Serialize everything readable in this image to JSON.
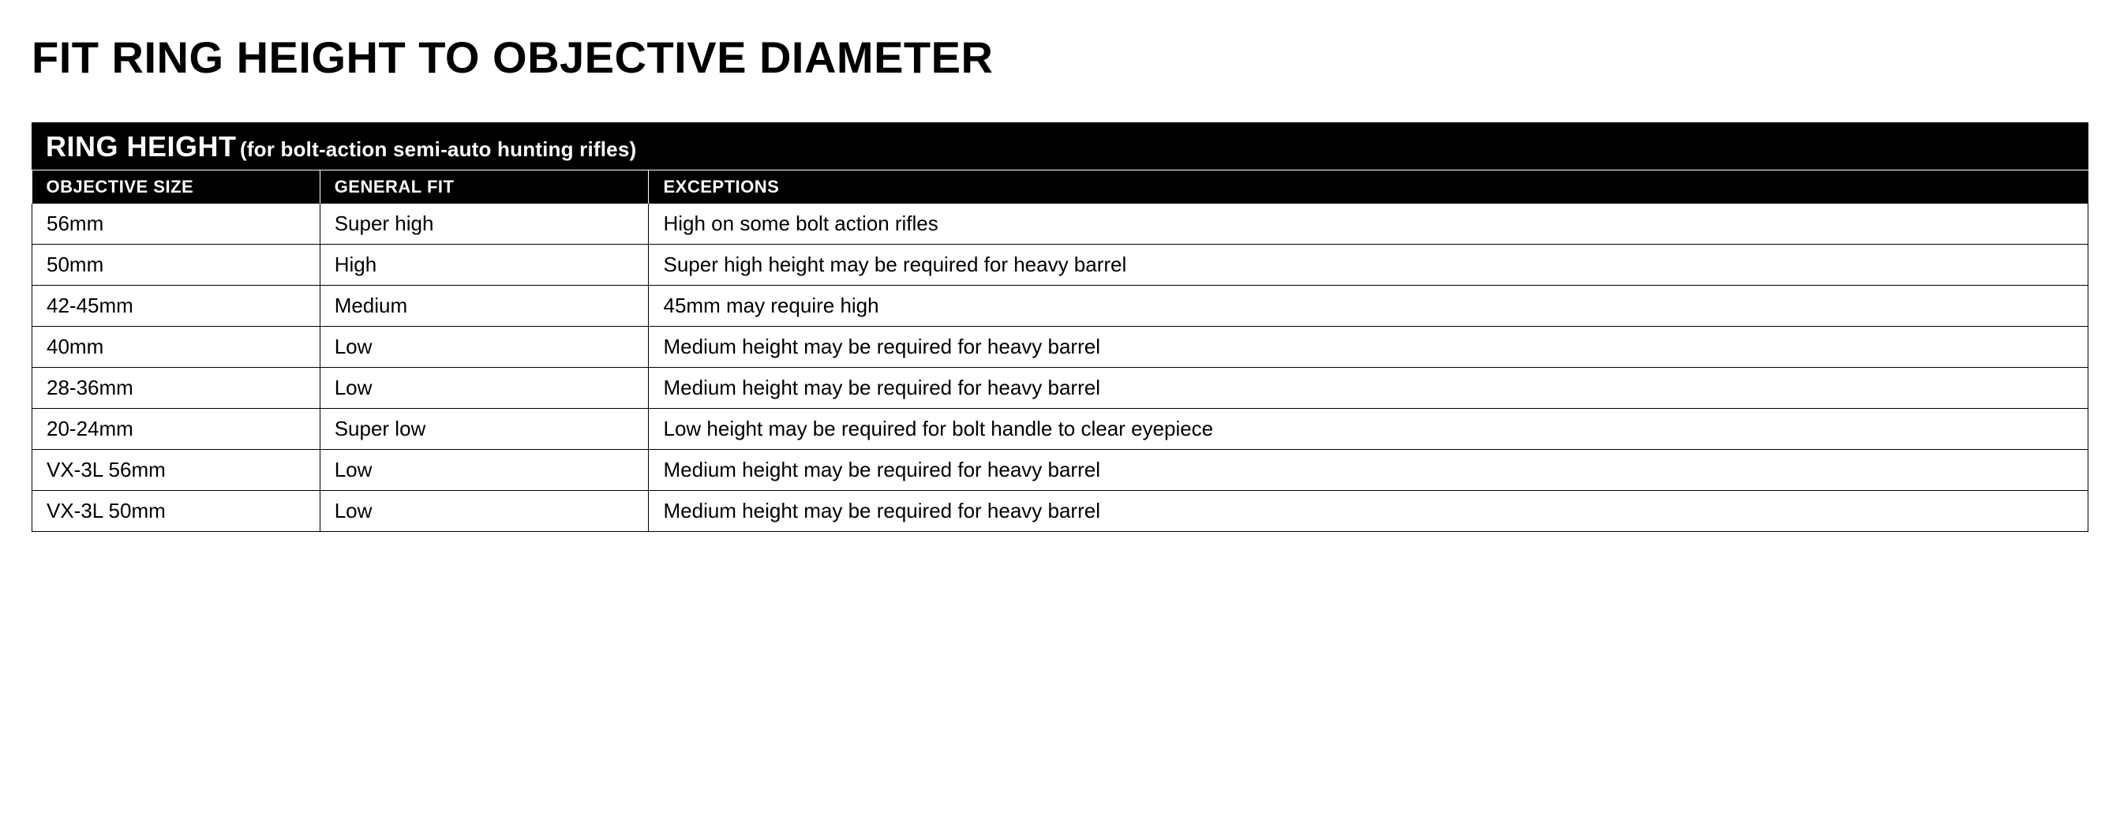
{
  "page": {
    "title": "FIT RING HEIGHT TO OBJECTIVE DIAMETER"
  },
  "table": {
    "header_main": "RING HEIGHT",
    "header_sub": "(for bolt-action semi-auto hunting rifles)",
    "columns": [
      "OBJECTIVE SIZE",
      "GENERAL FIT",
      "EXCEPTIONS"
    ],
    "rows": [
      {
        "objective_size": "56mm",
        "general_fit": "Super high",
        "exceptions": "High on some bolt action rifles"
      },
      {
        "objective_size": "50mm",
        "general_fit": "High",
        "exceptions": "Super high height may be required for heavy barrel"
      },
      {
        "objective_size": "42-45mm",
        "general_fit": "Medium",
        "exceptions": "45mm may require high"
      },
      {
        "objective_size": "40mm",
        "general_fit": "Low",
        "exceptions": "Medium height may be required for heavy barrel"
      },
      {
        "objective_size": "28-36mm",
        "general_fit": "Low",
        "exceptions": "Medium height may be required for heavy barrel"
      },
      {
        "objective_size": "20-24mm",
        "general_fit": "Super low",
        "exceptions": "Low height may be required for bolt handle to clear eyepiece"
      },
      {
        "objective_size": "VX-3L 56mm",
        "general_fit": "Low",
        "exceptions": "Medium height may be required for heavy barrel"
      },
      {
        "objective_size": "VX-3L 50mm",
        "general_fit": "Low",
        "exceptions": "Medium height may be required for heavy barrel"
      }
    ],
    "colors": {
      "header_bg": "#000000",
      "header_text": "#ffffff",
      "body_text": "#000000",
      "border": "#000000",
      "background": "#ffffff"
    },
    "column_widths_pct": [
      14,
      16,
      70
    ],
    "font_sizes_pt": {
      "page_title": 42,
      "table_title_big": 27,
      "table_title_small": 20,
      "column_headers": 17,
      "body": 20
    }
  }
}
